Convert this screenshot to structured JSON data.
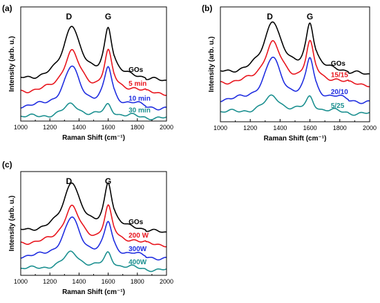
{
  "chart_data": [
    {
      "panel_label": "(a)",
      "type": "line",
      "xlabel": "Raman Shift (cm⁻¹)",
      "ylabel": "Intensity (arb. u.)",
      "xlim": [
        1000,
        2000
      ],
      "xticks": [
        1000,
        1200,
        1400,
        1600,
        1800,
        2000
      ],
      "y_tick_labels": false,
      "grid": false,
      "peak_labels": [
        {
          "text": "D",
          "x": 1350
        },
        {
          "text": "G",
          "x": 1600
        }
      ],
      "series": [
        {
          "name": "GOs",
          "color": "#000000",
          "baseline": 0.36,
          "d_height": 0.48,
          "g_height": 0.44
        },
        {
          "name": "5 min",
          "color": "#e8141c",
          "baseline": 0.25,
          "d_height": 0.36,
          "g_height": 0.34
        },
        {
          "name": "10 min",
          "color": "#1f2de0",
          "baseline": 0.12,
          "d_height": 0.35,
          "g_height": 0.33
        },
        {
          "name": "30 min",
          "color": "#1a8f8f",
          "baseline": 0.035,
          "d_height": 0.11,
          "g_height": 0.105
        }
      ]
    },
    {
      "panel_label": "(b)",
      "type": "line",
      "xlabel": "Raman Shift (cm⁻¹)",
      "ylabel": "Intensity (arb. u.)",
      "xlim": [
        1000,
        2000
      ],
      "xticks": [
        1000,
        1200,
        1400,
        1600,
        1800,
        2000
      ],
      "y_tick_labels": false,
      "grid": false,
      "peak_labels": [
        {
          "text": "D",
          "x": 1350
        },
        {
          "text": "G",
          "x": 1600
        }
      ],
      "series": [
        {
          "name": "GOs",
          "color": "#000000",
          "baseline": 0.42,
          "d_height": 0.46,
          "g_height": 0.42
        },
        {
          "name": "15/15",
          "color": "#e8141c",
          "baseline": 0.33,
          "d_height": 0.36,
          "g_height": 0.34
        },
        {
          "name": "20/10",
          "color": "#1f2de0",
          "baseline": 0.18,
          "d_height": 0.37,
          "g_height": 0.35
        },
        {
          "name": "5/25",
          "color": "#1a8f8f",
          "baseline": 0.08,
          "d_height": 0.14,
          "g_height": 0.13
        }
      ]
    },
    {
      "panel_label": "(c)",
      "type": "line",
      "xlabel": "Raman Shift (cm⁻¹)",
      "ylabel": "Intensity (arb. u.)",
      "xlim": [
        1000,
        2000
      ],
      "xticks": [
        1000,
        1200,
        1400,
        1600,
        1800,
        2000
      ],
      "y_tick_labels": false,
      "grid": false,
      "peak_labels": [
        {
          "text": "D",
          "x": 1350
        },
        {
          "text": "G",
          "x": 1600
        }
      ],
      "series": [
        {
          "name": "GOs",
          "color": "#000000",
          "baseline": 0.42,
          "d_height": 0.48,
          "g_height": 0.45
        },
        {
          "name": "200 W",
          "color": "#e8141c",
          "baseline": 0.3,
          "d_height": 0.36,
          "g_height": 0.34
        },
        {
          "name": "300W",
          "color": "#1f2de0",
          "baseline": 0.17,
          "d_height": 0.38,
          "g_height": 0.32
        },
        {
          "name": "400W",
          "color": "#1a8f8f",
          "baseline": 0.06,
          "d_height": 0.16,
          "g_height": 0.15
        }
      ]
    }
  ]
}
